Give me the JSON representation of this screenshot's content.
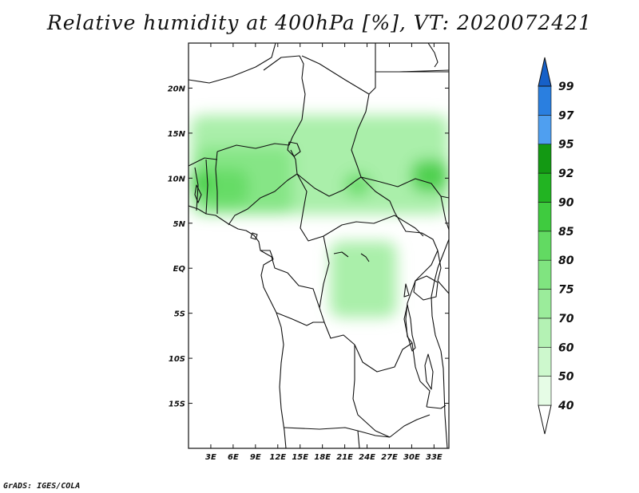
{
  "title": "Relative humidity at 400hPa [%], VT: 2020072421",
  "credit": "GrADS: IGES/COLA",
  "map": {
    "projection": "lat-lon",
    "lon_range": [
      0,
      35
    ],
    "lat_range": [
      -20,
      25
    ],
    "lon_ticks": [
      {
        "value": 3,
        "label": "3E"
      },
      {
        "value": 6,
        "label": "6E"
      },
      {
        "value": 9,
        "label": "9E"
      },
      {
        "value": 12,
        "label": "12E"
      },
      {
        "value": 15,
        "label": "15E"
      },
      {
        "value": 18,
        "label": "18E"
      },
      {
        "value": 21,
        "label": "21E"
      },
      {
        "value": 24,
        "label": "24E"
      },
      {
        "value": 27,
        "label": "27E"
      },
      {
        "value": 30,
        "label": "30E"
      },
      {
        "value": 33,
        "label": "33E"
      }
    ],
    "lat_ticks": [
      {
        "value": 20,
        "label": "20N"
      },
      {
        "value": 15,
        "label": "15N"
      },
      {
        "value": 10,
        "label": "10N"
      },
      {
        "value": 5,
        "label": "5N"
      },
      {
        "value": 0,
        "label": "EQ"
      },
      {
        "value": -5,
        "label": "5S"
      },
      {
        "value": -10,
        "label": "10S"
      },
      {
        "value": -15,
        "label": "15S"
      }
    ]
  },
  "colorbar": {
    "levels": [
      "40",
      "50",
      "60",
      "70",
      "75",
      "80",
      "85",
      "90",
      "92",
      "95",
      "97",
      "99"
    ],
    "colors": [
      "#ffffff",
      "#e6fce6",
      "#cdf8cd",
      "#b4f2b4",
      "#9bec9b",
      "#80e480",
      "#62da62",
      "#3fcb3f",
      "#22b422",
      "#139913",
      "#4f9ff0",
      "#2a7fe0",
      "#1660c8"
    ]
  },
  "humidity_regions": [
    {
      "level": "70",
      "lon": [
        0.3,
        35
      ],
      "lat": [
        6,
        17
      ]
    },
    {
      "level": "75",
      "lon": [
        1,
        14
      ],
      "lat": [
        6,
        13.5
      ]
    },
    {
      "level": "80",
      "lon": [
        2,
        8
      ],
      "lat": [
        7,
        11
      ]
    },
    {
      "level": "85",
      "lon": [
        0.2,
        3
      ],
      "lat": [
        8,
        11
      ]
    },
    {
      "level": "85",
      "lon": [
        30,
        35
      ],
      "lat": [
        8.5,
        12
      ]
    },
    {
      "level": "80",
      "lon": [
        21,
        24.5
      ],
      "lat": [
        8,
        10.5
      ]
    },
    {
      "level": "70",
      "lon": [
        19,
        28
      ],
      "lat": [
        -5.5,
        3
      ]
    }
  ]
}
